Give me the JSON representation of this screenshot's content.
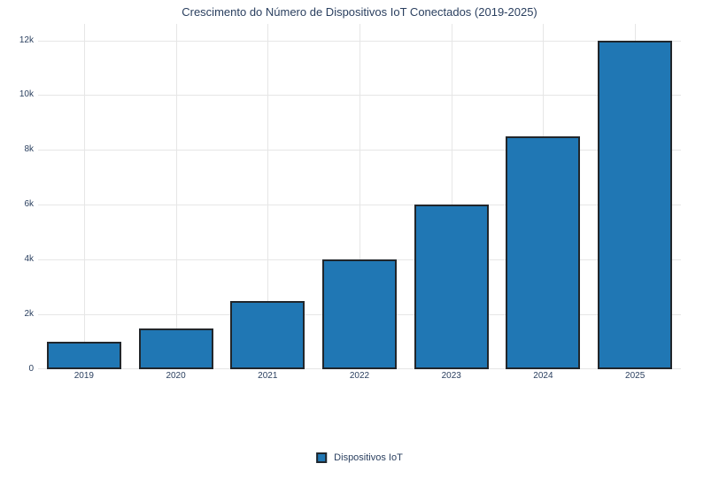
{
  "chart_data": {
    "type": "bar",
    "title": "Crescimento do Número de Dispositivos IoT Conectados (2019-2025)",
    "categories": [
      "2019",
      "2020",
      "2021",
      "2022",
      "2023",
      "2024",
      "2025"
    ],
    "series": [
      {
        "name": "Dispositivos IoT",
        "values": [
          1000,
          1500,
          2500,
          4000,
          6000,
          8500,
          12000
        ]
      }
    ],
    "xlabel": "",
    "ylabel": "",
    "ylim": [
      0,
      12600
    ],
    "yticks": {
      "values": [
        0,
        2000,
        4000,
        6000,
        8000,
        10000,
        12000
      ],
      "labels": [
        "0",
        "2k",
        "4k",
        "6k",
        "8k",
        "10k",
        "12k"
      ]
    },
    "grid": true,
    "legend_position": "bottom-center",
    "colors": {
      "bar_fill": "#2077b4",
      "bar_edge": "#21262b",
      "grid_line": "#e6e6e6",
      "text": "#2a3f5f",
      "background": "#ffffff"
    }
  }
}
